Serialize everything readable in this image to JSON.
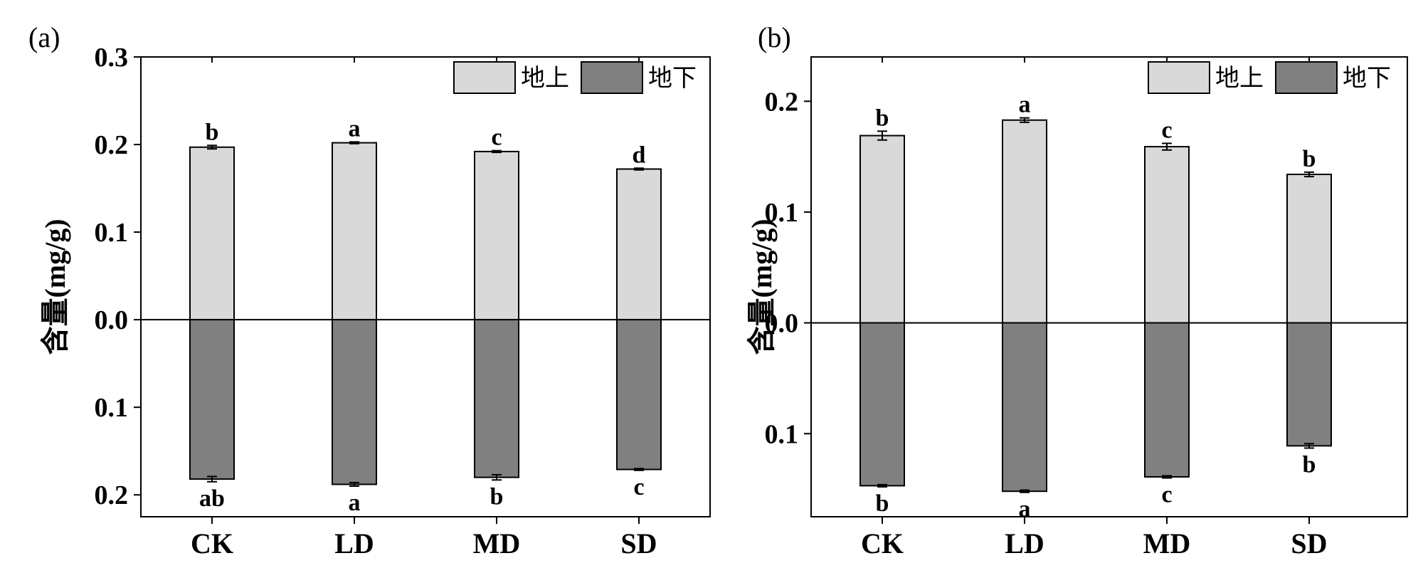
{
  "colors": {
    "above": "#d9d9d9",
    "below": "#808080",
    "stroke": "#000000",
    "background": "#ffffff"
  },
  "chart_data": [
    {
      "panel_label": "(a)",
      "type": "bar",
      "subtype": "diverging-stacked",
      "ylabel": "含量(mg/g)",
      "xlabel": "",
      "categories": [
        "CK",
        "LD",
        "MD",
        "SD"
      ],
      "ylim": [
        -0.225,
        0.3
      ],
      "yticks": [
        {
          "value": 0.3,
          "label": "0.3"
        },
        {
          "value": 0.2,
          "label": "0.2"
        },
        {
          "value": 0.1,
          "label": "0.1"
        },
        {
          "value": 0.0,
          "label": "0.0"
        },
        {
          "value": -0.1,
          "label": "0.1"
        },
        {
          "value": -0.2,
          "label": "0.2"
        }
      ],
      "legend": {
        "position": "top-right",
        "entries": [
          "地上",
          "地下"
        ]
      },
      "series": [
        {
          "name": "地上",
          "color_key": "above",
          "values": [
            0.197,
            0.202,
            0.192,
            0.172
          ],
          "errors": [
            0.002,
            0.001,
            0.001,
            0.001
          ],
          "letters": [
            "b",
            "a",
            "c",
            "d"
          ]
        },
        {
          "name": "地下",
          "color_key": "below",
          "values": [
            0.182,
            0.188,
            0.18,
            0.171
          ],
          "errors": [
            0.003,
            0.002,
            0.003,
            0.001
          ],
          "letters": [
            "ab",
            "a",
            "b",
            "c"
          ]
        }
      ]
    },
    {
      "panel_label": "(b)",
      "type": "bar",
      "subtype": "diverging-stacked",
      "ylabel": "含量(mg/g)",
      "xlabel": "",
      "categories": [
        "CK",
        "LD",
        "MD",
        "SD"
      ],
      "ylim": [
        -0.175,
        0.24
      ],
      "yticks": [
        {
          "value": 0.2,
          "label": "0.2"
        },
        {
          "value": 0.1,
          "label": "0.1"
        },
        {
          "value": 0.0,
          "label": "0.0"
        },
        {
          "value": -0.1,
          "label": "0.1"
        }
      ],
      "legend": {
        "position": "top-right",
        "entries": [
          "地上",
          "地下"
        ]
      },
      "series": [
        {
          "name": "地上",
          "color_key": "above",
          "values": [
            0.169,
            0.183,
            0.159,
            0.134
          ],
          "errors": [
            0.004,
            0.002,
            0.003,
            0.002
          ],
          "letters": [
            "b",
            "a",
            "c",
            "b"
          ]
        },
        {
          "name": "地下",
          "color_key": "below",
          "values": [
            0.147,
            0.152,
            0.139,
            0.111
          ],
          "errors": [
            0.001,
            0.001,
            0.001,
            0.002
          ],
          "letters": [
            "b",
            "a",
            "c",
            "b"
          ]
        }
      ]
    }
  ]
}
